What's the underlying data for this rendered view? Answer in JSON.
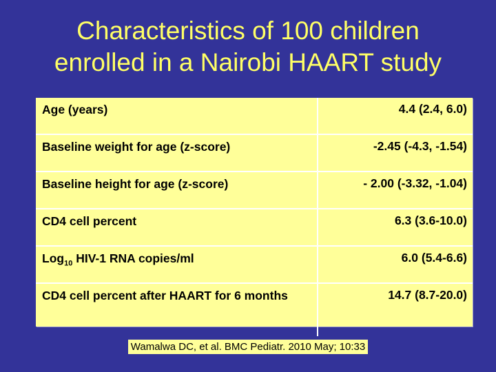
{
  "title": {
    "line1": "Characteristics of 100 children",
    "line2": "enrolled in a Nairobi HAART study"
  },
  "table": {
    "rows": [
      {
        "label": "Age (years)",
        "value": "4.4 (2.4, 6.0)"
      },
      {
        "label": "Baseline weight for age (z-score)",
        "value": "-2.45 (-4.3, -1.54)"
      },
      {
        "label": "Baseline height for age (z-score)",
        "value": "- 2.00 (-3.32, -1.04)"
      },
      {
        "label": "CD4 cell percent",
        "value": "6.3 (3.6-10.0)"
      },
      {
        "label_prefix": "Log",
        "label_sub": "10",
        "label_suffix": " HIV-1 RNA copies/ml",
        "value": "6.0 (5.4-6.6)"
      },
      {
        "label": "CD4 cell percent after HAART for 6 months",
        "value": "14.7 (8.7-20.0)"
      }
    ]
  },
  "citation": "Wamalwa DC, et al.  BMC Pediatr.  2010 May; 10:33"
}
